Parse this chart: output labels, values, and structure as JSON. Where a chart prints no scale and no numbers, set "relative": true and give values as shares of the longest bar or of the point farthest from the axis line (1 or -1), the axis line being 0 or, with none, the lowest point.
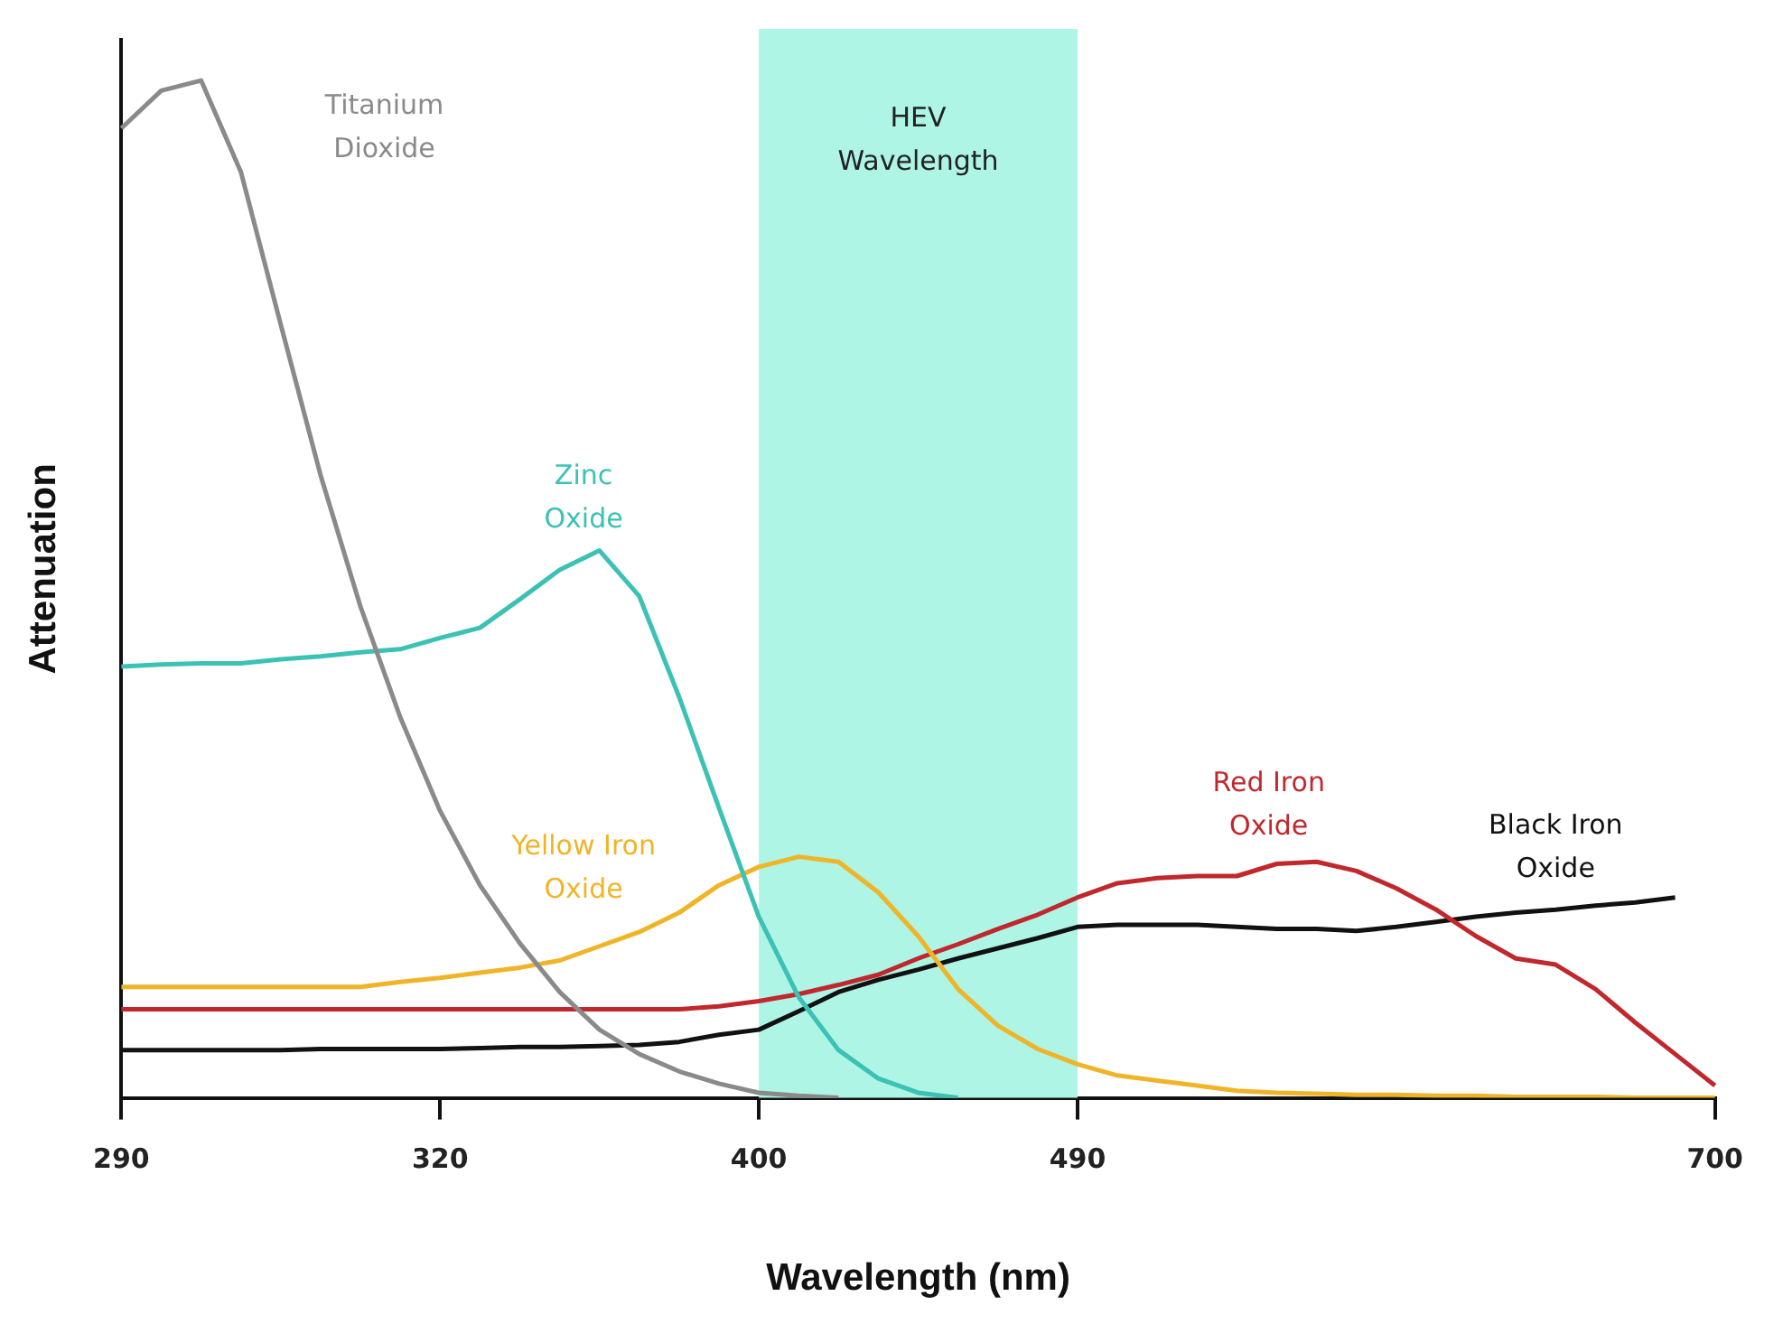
{
  "chart_data": {
    "type": "line",
    "xlabel": "Wavelength (nm)",
    "ylabel": "Attenuation",
    "relative": true,
    "legend": false,
    "categories": [
      "290",
      null,
      null,
      null,
      null,
      null,
      null,
      null,
      "320",
      null,
      null,
      null,
      null,
      null,
      null,
      null,
      "400",
      null,
      null,
      null,
      null,
      null,
      null,
      null,
      "490",
      null,
      null,
      null,
      null,
      null,
      null,
      null,
      null,
      null,
      null,
      null,
      null,
      null,
      null,
      null,
      "700"
    ],
    "bands": [
      {
        "axis": "x",
        "from": "400",
        "to": "490",
        "label": "HEV Wavelength",
        "color": "#aef5e6"
      }
    ],
    "series": [
      {
        "name": "Titanium Dioxide",
        "color": "#8a8a8a",
        "values": [
          0.953,
          0.99,
          1,
          0.91,
          0.76,
          0.612,
          0.483,
          0.374,
          0.282,
          0.209,
          0.152,
          0.104,
          0.067,
          0.043,
          0.026,
          0.014,
          0.005,
          0.002,
          0,
          null,
          null,
          null,
          null,
          null,
          null,
          null,
          null,
          null,
          null,
          null,
          null,
          null,
          null,
          null,
          null,
          null,
          null,
          null,
          null,
          null,
          null
        ]
      },
      {
        "name": "Zinc Oxide",
        "color": "#3cc1b5",
        "values": [
          0.424,
          0.426,
          0.427,
          0.427,
          0.431,
          0.434,
          0.438,
          0.441,
          0.452,
          0.462,
          0.49,
          0.519,
          0.538,
          0.493,
          0.394,
          0.285,
          0.178,
          0.099,
          0.047,
          0.019,
          0.005,
          0,
          null,
          null,
          null,
          null,
          null,
          null,
          null,
          null,
          null,
          null,
          null,
          null,
          null,
          null,
          null,
          null,
          null,
          null,
          null
        ]
      },
      {
        "name": "Yellow Iron Oxide",
        "color": "#f0b428",
        "values": [
          0.109,
          0.109,
          0.109,
          0.109,
          0.109,
          0.109,
          0.109,
          0.114,
          0.118,
          0.123,
          0.128,
          0.135,
          0.149,
          0.163,
          0.182,
          0.209,
          0.227,
          0.237,
          0.232,
          0.202,
          0.159,
          0.107,
          0.071,
          0.048,
          0.033,
          0.022,
          0.017,
          0.012,
          0.007,
          0.005,
          0.004,
          0.003,
          0.003,
          0.002,
          0.002,
          0.001,
          0.001,
          0.001,
          0,
          0,
          0
        ]
      },
      {
        "name": "Red Iron Oxide",
        "color": "#c0282d",
        "values": [
          0.087,
          0.087,
          0.087,
          0.087,
          0.087,
          0.087,
          0.087,
          0.087,
          0.087,
          0.087,
          0.087,
          0.087,
          0.087,
          0.087,
          0.087,
          0.09,
          0.095,
          0.102,
          0.111,
          0.121,
          0.137,
          0.151,
          0.166,
          0.18,
          0.197,
          0.211,
          0.216,
          0.218,
          0.218,
          0.23,
          0.232,
          0.223,
          0.206,
          0.185,
          0.159,
          0.137,
          0.131,
          0.107,
          0.074,
          0.043,
          0.012
        ]
      },
      {
        "name": "Black Iron Oxide",
        "color": "#111111",
        "values": [
          0.047,
          0.047,
          0.047,
          0.047,
          0.047,
          0.048,
          0.048,
          0.048,
          0.048,
          0.049,
          0.05,
          0.05,
          0.051,
          0.052,
          0.055,
          0.062,
          0.067,
          0.085,
          0.104,
          0.116,
          0.126,
          0.137,
          0.147,
          0.157,
          0.168,
          0.17,
          0.17,
          0.17,
          0.168,
          0.166,
          0.166,
          0.164,
          0.168,
          0.173,
          0.178,
          0.182,
          0.185,
          0.189,
          0.192,
          0.197,
          null
        ]
      }
    ]
  }
}
